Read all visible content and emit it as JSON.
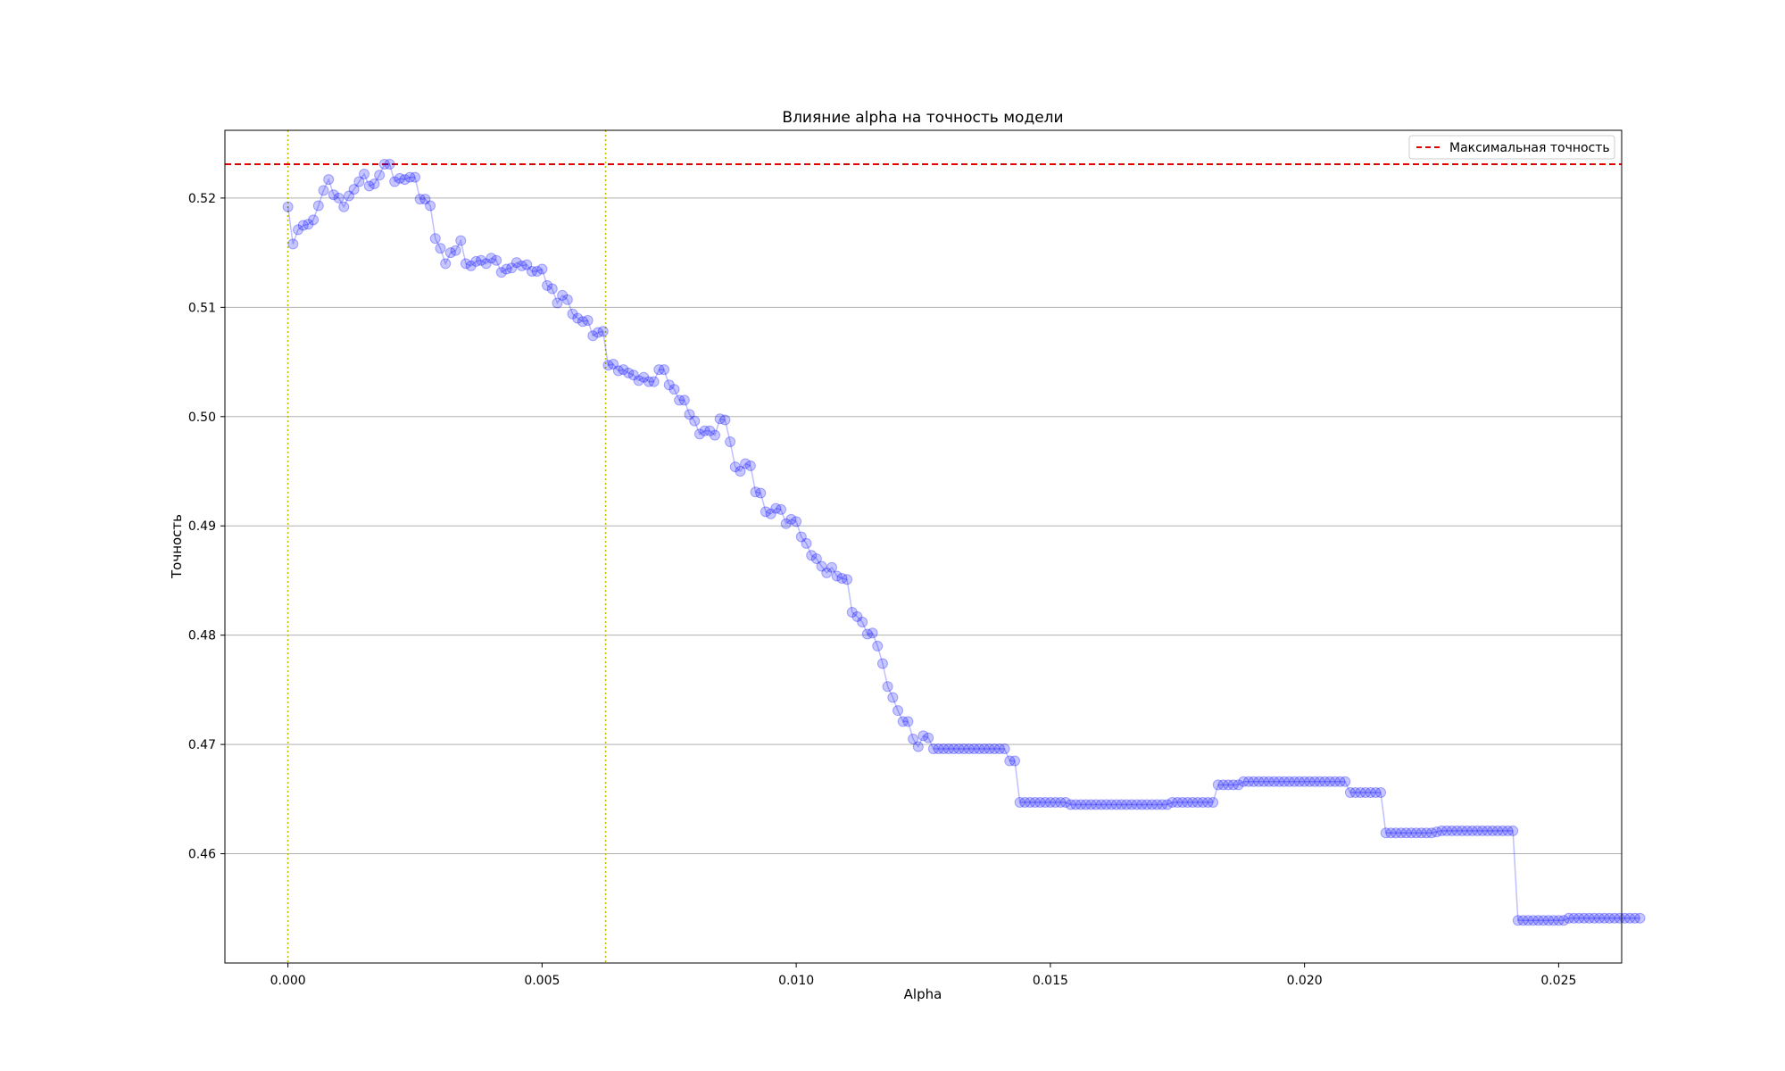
{
  "chart_data": {
    "type": "line",
    "title": "Влияние alpha на точность модели",
    "xlabel": "Alpha",
    "ylabel": "Точность",
    "xlim": [
      -0.00124,
      0.02624
    ],
    "ylim": [
      0.45,
      0.5262
    ],
    "x_ticks": [
      0.0,
      0.005,
      0.01,
      0.015,
      0.02,
      0.025
    ],
    "x_tick_labels": [
      "0.000",
      "0.005",
      "0.010",
      "0.015",
      "0.020",
      "0.025"
    ],
    "y_ticks": [
      0.46,
      0.47,
      0.48,
      0.49,
      0.5,
      0.51,
      0.52
    ],
    "y_tick_labels": [
      "0.46",
      "0.47",
      "0.48",
      "0.49",
      "0.50",
      "0.51",
      "0.52"
    ],
    "grid": "y-axis",
    "legend": {
      "placement": "top-right",
      "entries": [
        "Максимальная точность"
      ]
    },
    "max_accuracy": 0.5231,
    "vlines": [
      0.0,
      0.00625
    ],
    "colors": {
      "series": "#0000ff",
      "max_line": "#e00000",
      "vlines": "#bfbf00",
      "grid": "#b0b0b0"
    },
    "series": [
      {
        "name": "Точность",
        "alpha_start": 0.0,
        "alpha_step": 0.0001,
        "values": [
          0.5192,
          0.5158,
          0.5171,
          0.5175,
          0.5176,
          0.518,
          0.5193,
          0.5207,
          0.5217,
          0.5203,
          0.52,
          0.5192,
          0.5202,
          0.5208,
          0.5215,
          0.5222,
          0.5211,
          0.5213,
          0.5221,
          0.5231,
          0.5231,
          0.5215,
          0.5218,
          0.5217,
          0.5219,
          0.5219,
          0.5199,
          0.5199,
          0.5193,
          0.5163,
          0.5154,
          0.514,
          0.515,
          0.5152,
          0.5161,
          0.514,
          0.5138,
          0.5142,
          0.5143,
          0.514,
          0.5145,
          0.5143,
          0.5132,
          0.5135,
          0.5136,
          0.5141,
          0.5138,
          0.5139,
          0.5133,
          0.5133,
          0.5135,
          0.512,
          0.5117,
          0.5104,
          0.5111,
          0.5107,
          0.5094,
          0.509,
          0.5087,
          0.5088,
          0.5074,
          0.5077,
          0.5078,
          0.5047,
          0.5048,
          0.5042,
          0.5043,
          0.504,
          0.5038,
          0.5033,
          0.5036,
          0.5032,
          0.5032,
          0.5043,
          0.5043,
          0.5029,
          0.5025,
          0.5015,
          0.5015,
          0.5002,
          0.4996,
          0.4984,
          0.4987,
          0.4987,
          0.4983,
          0.4998,
          0.4997,
          0.4977,
          0.4954,
          0.495,
          0.4957,
          0.4955,
          0.4931,
          0.493,
          0.4913,
          0.4911,
          0.4916,
          0.4915,
          0.4902,
          0.4906,
          0.4904,
          0.489,
          0.4884,
          0.4873,
          0.487,
          0.4863,
          0.4857,
          0.4862,
          0.4854,
          0.4852,
          0.4851,
          0.4821,
          0.4817,
          0.4812,
          0.4801,
          0.4802,
          0.479,
          0.4774,
          0.4753,
          0.4743,
          0.4731,
          0.4721,
          0.4721,
          0.4705,
          0.4698,
          0.4708,
          0.4706,
          0.4696,
          0.4696,
          0.4696,
          0.4696,
          0.4696,
          0.4696,
          0.4696,
          0.4696,
          0.4696,
          0.4696,
          0.4696,
          0.4696,
          0.4696,
          0.4696,
          0.4696,
          0.4685,
          0.4685,
          0.4647,
          0.4647,
          0.4647,
          0.4647,
          0.4647,
          0.4647,
          0.4647,
          0.4647,
          0.4647,
          0.4647,
          0.4645,
          0.4645,
          0.4645,
          0.4645,
          0.4645,
          0.4645,
          0.4645,
          0.4645,
          0.4645,
          0.4645,
          0.4645,
          0.4645,
          0.4645,
          0.4645,
          0.4645,
          0.4645,
          0.4645,
          0.4645,
          0.4645,
          0.4645,
          0.4647,
          0.4647,
          0.4647,
          0.4647,
          0.4647,
          0.4647,
          0.4647,
          0.4647,
          0.4647,
          0.4663,
          0.4663,
          0.4663,
          0.4663,
          0.4663,
          0.4666,
          0.4666,
          0.4666,
          0.4666,
          0.4666,
          0.4666,
          0.4666,
          0.4666,
          0.4666,
          0.4666,
          0.4666,
          0.4666,
          0.4666,
          0.4666,
          0.4666,
          0.4666,
          0.4666,
          0.4666,
          0.4666,
          0.4666,
          0.4666,
          0.4656,
          0.4656,
          0.4656,
          0.4656,
          0.4656,
          0.4656,
          0.4656,
          0.4619,
          0.4619,
          0.4619,
          0.4619,
          0.4619,
          0.4619,
          0.4619,
          0.4619,
          0.4619,
          0.4619,
          0.462,
          0.4621,
          0.4621,
          0.4621,
          0.4621,
          0.4621,
          0.4621,
          0.4621,
          0.4621,
          0.4621,
          0.4621,
          0.4621,
          0.4621,
          0.4621,
          0.4621,
          0.4621,
          0.4539,
          0.4539,
          0.4539,
          0.4539,
          0.4539,
          0.4539,
          0.4539,
          0.4539,
          0.4539,
          0.4539,
          0.4541,
          0.4541,
          0.4541,
          0.4541,
          0.4541,
          0.4541,
          0.4541,
          0.4541,
          0.4541,
          0.4541,
          0.4541,
          0.4541,
          0.4541,
          0.4541,
          0.4541
        ]
      }
    ]
  }
}
